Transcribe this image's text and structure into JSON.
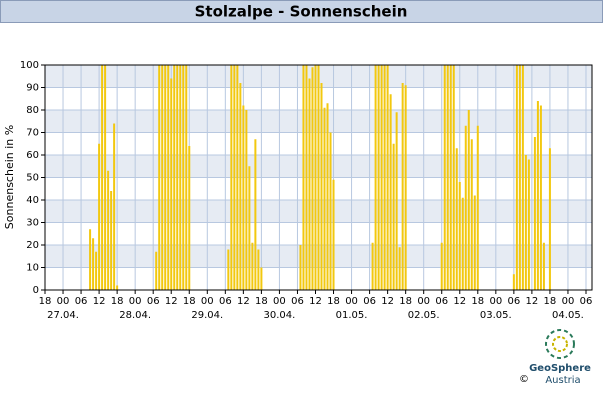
{
  "chart_data": {
    "type": "bar",
    "title": "Stolzalpe - Sonnenschein",
    "y_label": "Sonnenschein in %",
    "color": "#f2c80f",
    "grid": true,
    "x": [
      9,
      10,
      11,
      12,
      13,
      14,
      15,
      16,
      17,
      18,
      31,
      32,
      33,
      34,
      35,
      36,
      37,
      38,
      39,
      40,
      41,
      42,
      55,
      56,
      57,
      58,
      59,
      60,
      61,
      62,
      63,
      64,
      65,
      66,
      79,
      80,
      81,
      82,
      83,
      84,
      85,
      86,
      87,
      88,
      89,
      90,
      103,
      104,
      105,
      106,
      107,
      108,
      109,
      110,
      111,
      112,
      113,
      114,
      126,
      127,
      128,
      129,
      130,
      131,
      132,
      133,
      134,
      135,
      136,
      137,
      138,
      150,
      151,
      152,
      153,
      154,
      155,
      157,
      158,
      159,
      160,
      162
    ],
    "values": [
      27,
      23,
      17,
      65,
      100,
      100,
      53,
      44,
      74,
      2,
      17,
      100,
      100,
      100,
      100,
      94,
      100,
      100,
      100,
      100,
      100,
      64,
      18,
      100,
      100,
      100,
      92,
      82,
      80,
      55,
      21,
      67,
      18,
      10,
      20,
      100,
      100,
      94,
      99,
      100,
      100,
      92,
      81,
      83,
      70,
      49,
      21,
      100,
      100,
      100,
      100,
      100,
      87,
      65,
      79,
      19,
      92,
      91,
      21,
      100,
      100,
      100,
      100,
      63,
      48,
      41,
      73,
      80,
      67,
      42,
      73,
      7,
      100,
      100,
      100,
      60,
      58,
      68,
      84,
      82,
      21,
      63
    ],
    "xlim": [
      -6,
      176
    ],
    "ylim": [
      0,
      100
    ],
    "yticks": [
      0,
      10,
      20,
      30,
      40,
      50,
      60,
      70,
      80,
      90,
      100
    ],
    "xticks": [
      {
        "value": -6,
        "label": "18"
      },
      {
        "value": 0,
        "label": "00"
      },
      {
        "value": 6,
        "label": "06"
      },
      {
        "value": 12,
        "label": "12"
      },
      {
        "value": 18,
        "label": "18"
      },
      {
        "value": 24,
        "label": "00"
      },
      {
        "value": 30,
        "label": "06"
      },
      {
        "value": 36,
        "label": "12"
      },
      {
        "value": 42,
        "label": "18"
      },
      {
        "value": 48,
        "label": "00"
      },
      {
        "value": 54,
        "label": "06"
      },
      {
        "value": 60,
        "label": "12"
      },
      {
        "value": 66,
        "label": "18"
      },
      {
        "value": 72,
        "label": "00"
      },
      {
        "value": 78,
        "label": "06"
      },
      {
        "value": 84,
        "label": "12"
      },
      {
        "value": 90,
        "label": "18"
      },
      {
        "value": 96,
        "label": "00"
      },
      {
        "value": 102,
        "label": "06"
      },
      {
        "value": 108,
        "label": "12"
      },
      {
        "value": 114,
        "label": "18"
      },
      {
        "value": 120,
        "label": "00"
      },
      {
        "value": 126,
        "label": "06"
      },
      {
        "value": 132,
        "label": "12"
      },
      {
        "value": 138,
        "label": "18"
      },
      {
        "value": 144,
        "label": "00"
      },
      {
        "value": 150,
        "label": "06"
      },
      {
        "value": 156,
        "label": "12"
      },
      {
        "value": 162,
        "label": "18"
      },
      {
        "value": 168,
        "label": "00"
      },
      {
        "value": 174,
        "label": "06"
      }
    ],
    "date_labels": [
      {
        "value": 0,
        "label": "27.04."
      },
      {
        "value": 24,
        "label": "28.04."
      },
      {
        "value": 48,
        "label": "29.04."
      },
      {
        "value": 72,
        "label": "30.04."
      },
      {
        "value": 96,
        "label": "01.05."
      },
      {
        "value": 120,
        "label": "02.05."
      },
      {
        "value": 144,
        "label": "03.05."
      },
      {
        "value": 168,
        "label": "04.05."
      }
    ]
  },
  "logo": {
    "name": "GeoSphere",
    "sub": "Austria",
    "copyright": "©"
  }
}
